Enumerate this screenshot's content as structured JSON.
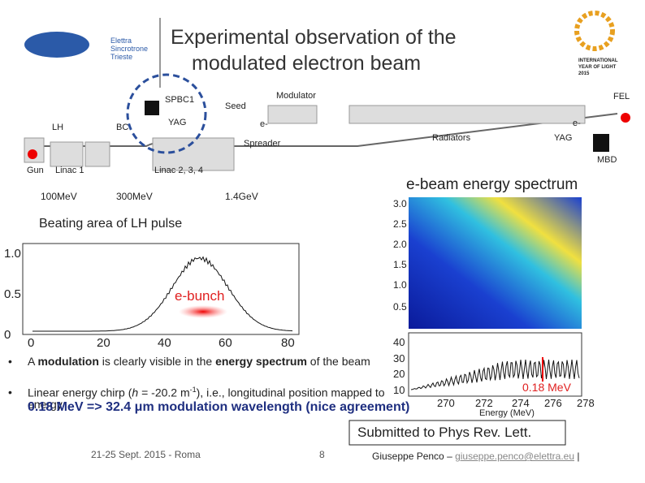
{
  "header": {
    "title_lines": [
      "Experimental observation of the",
      "modulated electron beam"
    ],
    "logo": [
      "Elettra",
      "Sincrotrone",
      "Trieste"
    ],
    "iyl": [
      "INTERNATIONAL",
      "YEAR OF LIGHT",
      "2015"
    ]
  },
  "beamline": {
    "labels": [
      "SPBC1",
      "YAG",
      "Seed",
      "Modulator",
      "FEL",
      "LH",
      "BC",
      "e-",
      "Spreader",
      "Radiators",
      "e-",
      "YAG",
      "MBD",
      "Gun",
      "Linac 1",
      "Linac 2, 3, 4",
      "100MeV",
      "300MeV",
      "1.4GeV"
    ]
  },
  "plots": {
    "spectrum_title": "e-beam energy spectrum",
    "beating_title": "Beating area of LH pulse",
    "left_yticks": [
      "1.0",
      "0.5",
      "0"
    ],
    "left_xticks": [
      "0",
      "20",
      "40",
      "60",
      "80"
    ],
    "bunch_label": "e-bunch",
    "map_yticks": [
      "3.0",
      "2.5",
      "2.0",
      "1.5",
      "1.0",
      "0.5"
    ],
    "profile_yticks": [
      "40",
      "30",
      "20",
      "10"
    ],
    "profile_xticks": [
      "270",
      "272",
      "274",
      "276",
      "278"
    ],
    "profile_xlabel": "Energy (MeV)",
    "annotation": "0.18 MeV"
  },
  "bullets": [
    [
      "A ",
      "modulation",
      " is clearly visible in the ",
      "energy spectrum",
      " of the beam"
    ],
    [
      "Linear energy chirp (",
      "h",
      " = -20.2 m",
      "-1",
      "), i.e., longitudinal position mapped to energy"
    ]
  ],
  "highlight": "0.18 MeV => 32.4 μm modulation wavelength (nice agreement)",
  "submitted": "Submitted to Phys Rev. Lett.",
  "footer": {
    "date": "21-25 Sept. 2015 - Roma",
    "page": "8",
    "author": "Giuseppe Penco – ",
    "email": "giuseppe.penco@elettra.eu",
    "sep": " |"
  }
}
